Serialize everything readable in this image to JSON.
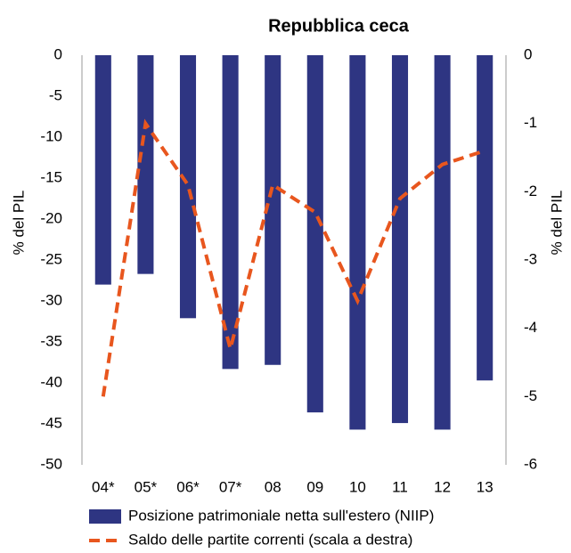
{
  "chart_data": {
    "type": "bar-line",
    "title": "Repubblica ceca",
    "y_label": "% del PIL",
    "y2_label": "% del PIL",
    "categories": [
      "04*",
      "05*",
      "06*",
      "07*",
      "08",
      "09",
      "10",
      "11",
      "12",
      "13"
    ],
    "series": [
      {
        "name": "Posizione patrimoniale netta sull'estero (NIIP)",
        "type": "bar",
        "color": "#2e3582",
        "values": [
          -28.0,
          -26.7,
          -32.1,
          -38.3,
          -37.8,
          -43.6,
          -45.7,
          -44.9,
          -45.7,
          -39.7
        ]
      },
      {
        "name": "Saldo delle partite correnti (scala a destra)",
        "type": "line",
        "axis": "y2",
        "color": "#e8561e",
        "dashed": true,
        "values": [
          -5.0,
          -1.0,
          -1.9,
          -4.3,
          -1.9,
          -2.3,
          -3.6,
          -2.1,
          -1.6,
          -1.4
        ]
      }
    ],
    "ylim": [
      -50,
      0
    ],
    "yticks": [
      0,
      -5,
      -10,
      -15,
      -20,
      -25,
      -30,
      -35,
      -40,
      -45,
      -50
    ],
    "y2lim": [
      -6,
      0
    ],
    "y2ticks": [
      0,
      -1,
      -2,
      -3,
      -4,
      -5,
      -6
    ],
    "grid": false
  }
}
